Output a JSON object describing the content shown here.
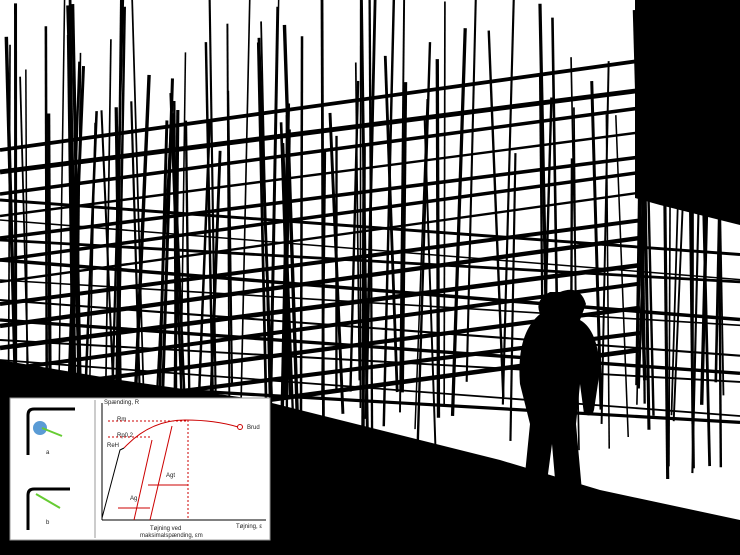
{
  "inset": {
    "y_axis_label": "Spænding, R",
    "x_axis_label": "Tøjning, ε",
    "x_marker_label_line1": "Tøjning ved",
    "x_marker_label_line2": "maksimalspænding, εm",
    "level_labels": [
      "Rm",
      "Rp0,2",
      "ReH"
    ],
    "break_label": "Brud",
    "strain_labels": [
      "Agt",
      "Ag"
    ],
    "bend_labels": [
      "a",
      "b"
    ]
  }
}
